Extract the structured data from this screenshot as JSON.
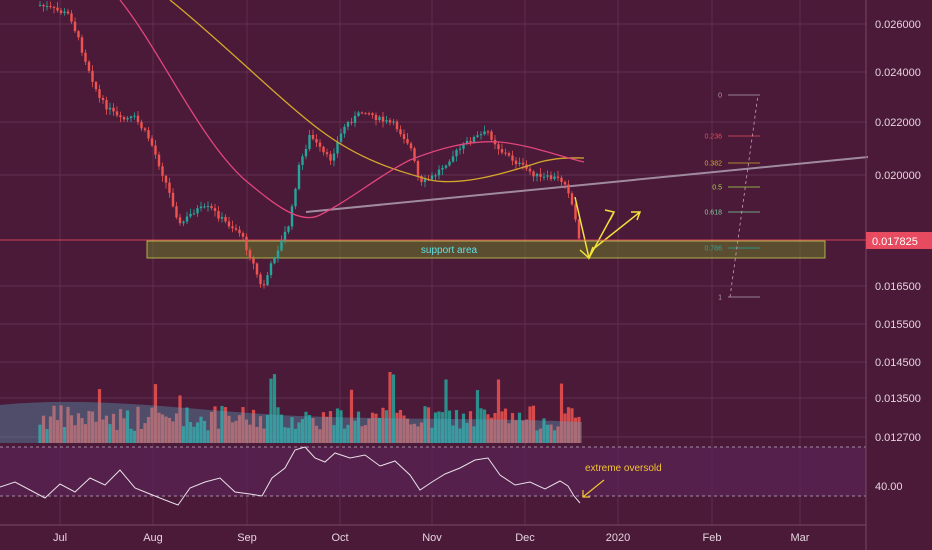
{
  "colors": {
    "background": "#4a1a38",
    "grid": "#6b3558",
    "bull": "#26a69a",
    "bear": "#ef5350",
    "ma_fast": "#e0457b",
    "ma_slow": "#d4a72c",
    "support_fill": "#6a7a2a",
    "support_border": "#c8d050",
    "trendline": "#a08aa0",
    "arrows": "#f2e23a",
    "rsi_line": "#e8e0e8",
    "rsi_band": "#5a2355",
    "price_tag": "#e84a5f",
    "annotation": "#f2c230"
  },
  "chart_data": {
    "type": "candlestick",
    "grid": true,
    "x_axis": {
      "labels": [
        "Jul",
        "Aug",
        "Sep",
        "Oct",
        "Nov",
        "Dec",
        "2020",
        "Feb",
        "Mar"
      ]
    },
    "y_axis": {
      "position": "right",
      "ylim": [
        0.0119,
        0.0268
      ],
      "labels": [
        "0.026000",
        "0.024000",
        "0.022000",
        "0.020000",
        "0.016500",
        "0.015500",
        "0.014500",
        "0.013500",
        "0.012700"
      ]
    },
    "last_price": "0.017825",
    "annotations": {
      "support": "support area",
      "oversold": "extreme oversold"
    },
    "fibonacci": {
      "levels": [
        "0",
        "0.236",
        "0.382",
        "0.5",
        "0.618",
        "0.786",
        "1"
      ]
    },
    "rsi": {
      "label": "40.00"
    }
  }
}
